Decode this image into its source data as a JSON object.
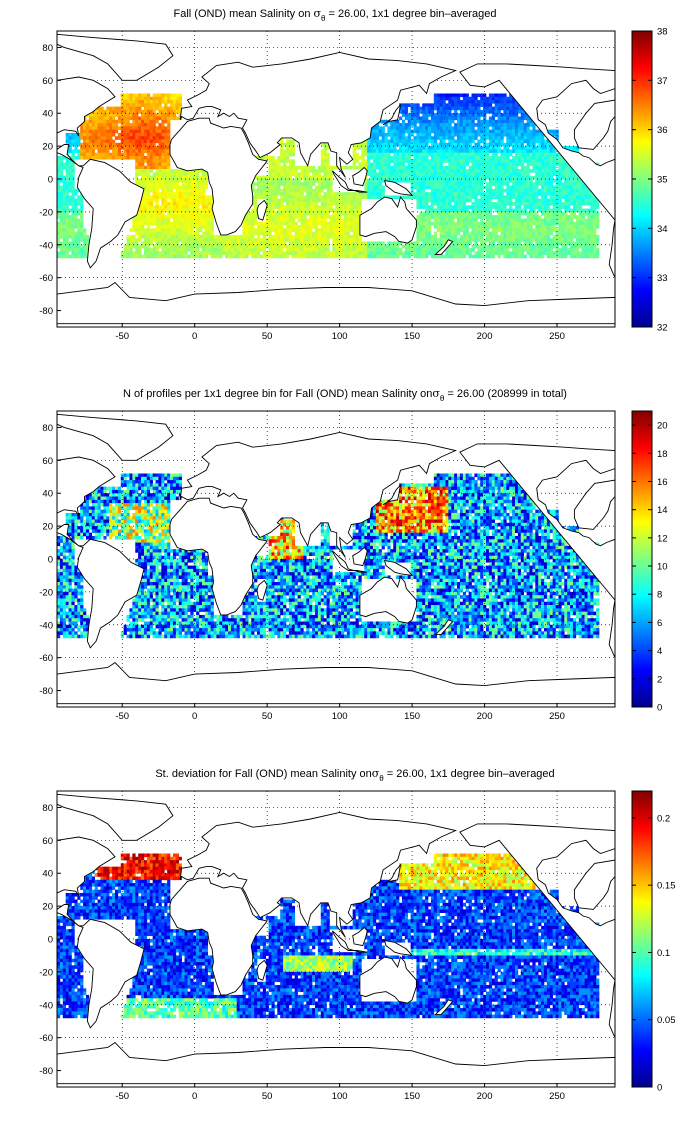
{
  "chart_data": [
    {
      "type": "heatmap",
      "title_parts": [
        "Fall (OND) mean Salinity on ",
        "σ",
        "θ",
        " = 26.00, 1x1 degree bin–averaged"
      ],
      "xlim": [
        -95,
        290
      ],
      "ylim": [
        -90,
        90
      ],
      "xticks": [
        -50,
        0,
        50,
        100,
        150,
        200,
        250
      ],
      "yticks": [
        80,
        60,
        40,
        20,
        0,
        -20,
        -40,
        -60,
        -80
      ],
      "clim": [
        32,
        38
      ],
      "cticks": [
        38,
        37,
        36,
        35,
        34,
        33,
        32
      ],
      "colormap": "jet",
      "grid": true,
      "field": "salinity"
    },
    {
      "type": "heatmap",
      "title_parts": [
        "N of profiles per 1x1 degree bin for Fall (OND) mean Salinity on",
        "σ",
        "θ",
        " = 26.00 (208999 in total)"
      ],
      "xlim": [
        -95,
        290
      ],
      "ylim": [
        -90,
        90
      ],
      "xticks": [
        -50,
        0,
        50,
        100,
        150,
        200,
        250
      ],
      "yticks": [
        80,
        60,
        40,
        20,
        0,
        -20,
        -40,
        -60,
        -80
      ],
      "clim": [
        0,
        21
      ],
      "cticks": [
        20,
        18,
        16,
        14,
        12,
        10,
        8,
        6,
        4,
        2,
        0
      ],
      "colormap": "jet",
      "grid": true,
      "field": "count"
    },
    {
      "type": "heatmap",
      "title_parts": [
        "St. deviation for Fall (OND) mean Salinity on",
        "σ",
        "θ",
        " = 26.00, 1x1 degree bin–averaged"
      ],
      "xlim": [
        -95,
        290
      ],
      "ylim": [
        -90,
        90
      ],
      "xticks": [
        -50,
        0,
        50,
        100,
        150,
        200,
        250
      ],
      "yticks": [
        80,
        60,
        40,
        20,
        0,
        -20,
        -40,
        -60,
        -80
      ],
      "clim": [
        0,
        0.22
      ],
      "cticks": [
        0.2,
        0.15,
        0.1,
        0.05,
        0
      ],
      "colormap": "jet",
      "grid": true,
      "field": "stddev"
    }
  ]
}
